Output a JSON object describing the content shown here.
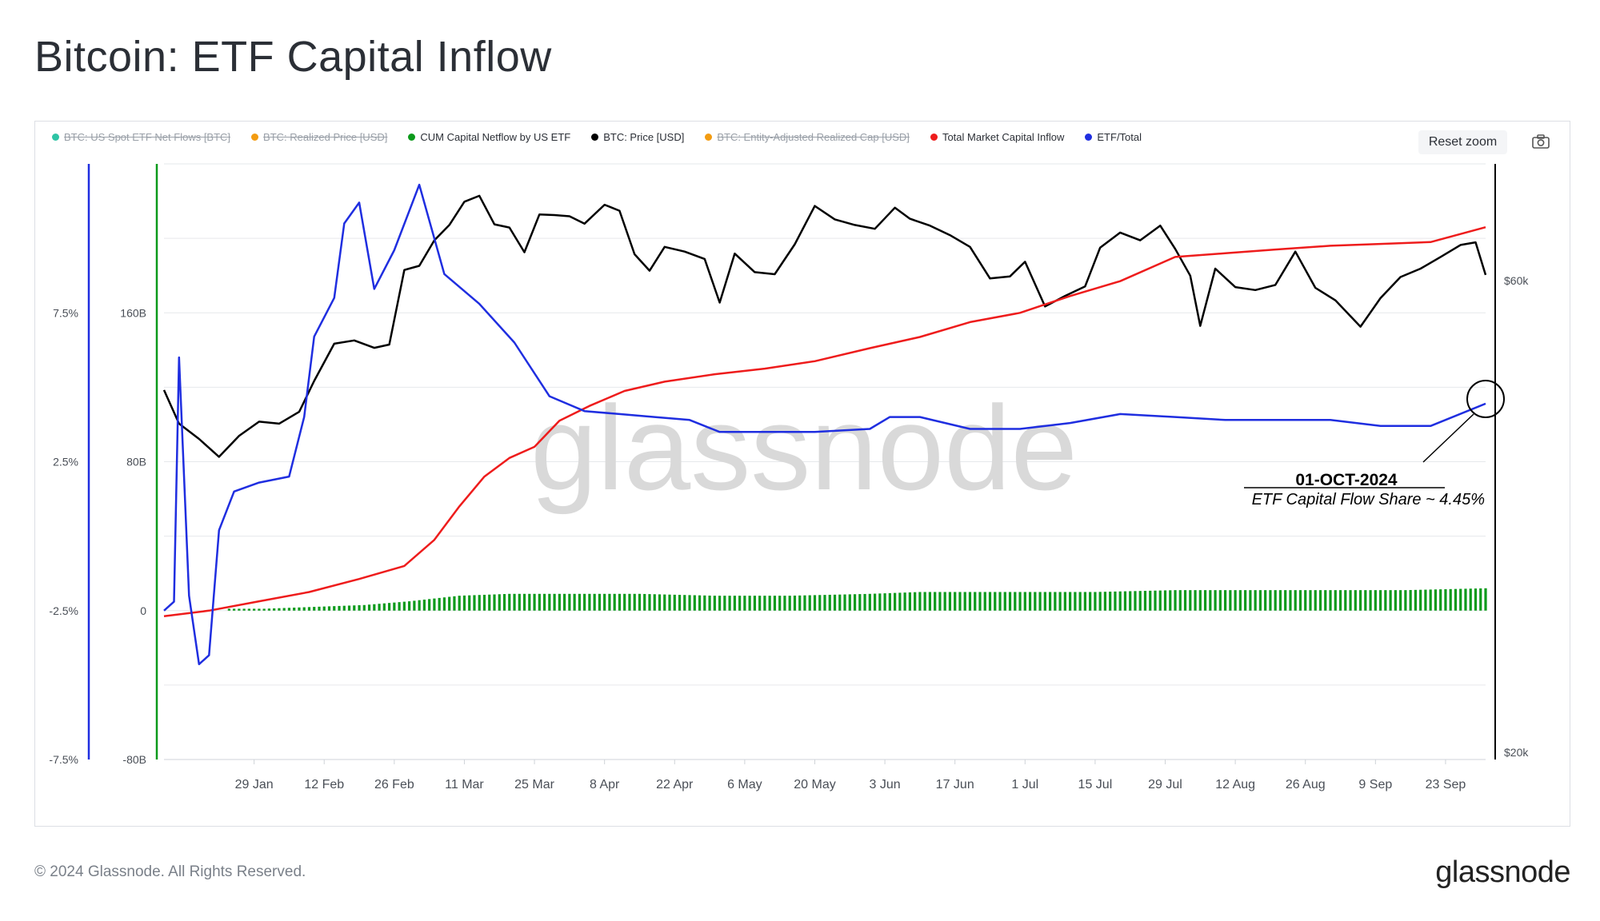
{
  "page": {
    "title": "Bitcoin: ETF Capital Inflow",
    "copyright": "© 2024 Glassnode. All Rights Reserved.",
    "logo": "glassnode",
    "watermark": "glassnode",
    "reset_zoom": "Reset zoom"
  },
  "annotation": {
    "date": "01-OCT-2024",
    "text": "ETF Capital Flow Share ~ 4.45%"
  },
  "chart_data": {
    "type": "line",
    "legend": [
      {
        "name": "BTC: US Spot ETF Net Flows [BTC]",
        "color": "#2ec4a5",
        "hidden": true
      },
      {
        "name": "BTC: Realized Price [USD]",
        "color": "#f39c12",
        "hidden": true
      },
      {
        "name": "CUM Capital Netflow by US ETF",
        "color": "#0b9a1b",
        "hidden": false
      },
      {
        "name": "BTC: Price [USD]",
        "color": "#000000",
        "hidden": false
      },
      {
        "name": "BTC: Entity-Adjusted Realized Cap [USD]",
        "color": "#f39c12",
        "hidden": true
      },
      {
        "name": "Total Market Capital Inflow",
        "color": "#ee1c1c",
        "hidden": false
      },
      {
        "name": "ETF/Total",
        "color": "#1f2ee0",
        "hidden": false
      }
    ],
    "x_ticks": [
      "29 Jan",
      "12 Feb",
      "26 Feb",
      "11 Mar",
      "25 Mar",
      "8 Apr",
      "22 Apr",
      "6 May",
      "20 May",
      "3 Jun",
      "17 Jun",
      "1 Jul",
      "15 Jul",
      "29 Jul",
      "12 Aug",
      "26 Aug",
      "9 Sep",
      "23 Sep"
    ],
    "x_range": [
      "2024-01-11",
      "2024-10-01"
    ],
    "y_axes": {
      "percent": {
        "ticks": [
          "7.5%",
          "2.5%",
          "-2.5%",
          "-7.5%"
        ],
        "color": "#1f2ee0",
        "range": [
          -7.5,
          12.5
        ]
      },
      "capital": {
        "ticks": [
          "160B",
          "80B",
          "0",
          "-80B"
        ],
        "color": "#0b9a1b",
        "range": [
          -80,
          240
        ]
      },
      "price": {
        "ticks": [
          "$60k",
          "$20k"
        ],
        "color": "#000000",
        "scale": "log"
      }
    },
    "grid": true,
    "series": [
      {
        "name": "BTC: Price [USD]",
        "axis": "price",
        "points": [
          [
            "2024-01-11",
            46500
          ],
          [
            "2024-01-14",
            43000
          ],
          [
            "2024-01-18",
            41500
          ],
          [
            "2024-01-22",
            39800
          ],
          [
            "2024-01-26",
            41800
          ],
          [
            "2024-01-30",
            43200
          ],
          [
            "2024-02-03",
            43000
          ],
          [
            "2024-02-07",
            44200
          ],
          [
            "2024-02-10",
            47500
          ],
          [
            "2024-02-14",
            51800
          ],
          [
            "2024-02-18",
            52200
          ],
          [
            "2024-02-22",
            51300
          ],
          [
            "2024-02-25",
            51700
          ],
          [
            "2024-02-28",
            61500
          ],
          [
            "2024-03-02",
            62100
          ],
          [
            "2024-03-05",
            65900
          ],
          [
            "2024-03-08",
            68300
          ],
          [
            "2024-03-11",
            72100
          ],
          [
            "2024-03-14",
            73100
          ],
          [
            "2024-03-17",
            68400
          ],
          [
            "2024-03-20",
            67900
          ],
          [
            "2024-03-23",
            64100
          ],
          [
            "2024-03-26",
            70000
          ],
          [
            "2024-03-29",
            69900
          ],
          [
            "2024-04-01",
            69700
          ],
          [
            "2024-04-04",
            68500
          ],
          [
            "2024-04-08",
            71600
          ],
          [
            "2024-04-11",
            70600
          ],
          [
            "2024-04-14",
            63800
          ],
          [
            "2024-04-17",
            61400
          ],
          [
            "2024-04-20",
            64900
          ],
          [
            "2024-04-24",
            64200
          ],
          [
            "2024-04-28",
            63100
          ],
          [
            "2024-05-01",
            57000
          ],
          [
            "2024-05-04",
            63900
          ],
          [
            "2024-05-08",
            61200
          ],
          [
            "2024-05-12",
            60900
          ],
          [
            "2024-05-16",
            65300
          ],
          [
            "2024-05-20",
            71400
          ],
          [
            "2024-05-24",
            69200
          ],
          [
            "2024-05-28",
            68300
          ],
          [
            "2024-06-01",
            67700
          ],
          [
            "2024-06-05",
            71100
          ],
          [
            "2024-06-08",
            69300
          ],
          [
            "2024-06-12",
            68200
          ],
          [
            "2024-06-16",
            66700
          ],
          [
            "2024-06-20",
            64900
          ],
          [
            "2024-06-24",
            60300
          ],
          [
            "2024-06-28",
            60600
          ],
          [
            "2024-07-01",
            62700
          ],
          [
            "2024-07-05",
            56500
          ],
          [
            "2024-07-09",
            57900
          ],
          [
            "2024-07-13",
            59200
          ],
          [
            "2024-07-16",
            64800
          ],
          [
            "2024-07-20",
            67100
          ],
          [
            "2024-07-24",
            65900
          ],
          [
            "2024-07-28",
            68200
          ],
          [
            "2024-07-31",
            64600
          ],
          [
            "2024-08-03",
            60700
          ],
          [
            "2024-08-05",
            54000
          ],
          [
            "2024-08-08",
            61700
          ],
          [
            "2024-08-12",
            59100
          ],
          [
            "2024-08-16",
            58700
          ],
          [
            "2024-08-20",
            59400
          ],
          [
            "2024-08-24",
            64200
          ],
          [
            "2024-08-28",
            59000
          ],
          [
            "2024-09-01",
            57300
          ],
          [
            "2024-09-06",
            53900
          ],
          [
            "2024-09-10",
            57600
          ],
          [
            "2024-09-14",
            60500
          ],
          [
            "2024-09-18",
            61700
          ],
          [
            "2024-09-22",
            63400
          ],
          [
            "2024-09-26",
            65200
          ],
          [
            "2024-09-29",
            65600
          ],
          [
            "2024-10-01",
            60800
          ]
        ]
      },
      {
        "name": "Total Market Capital Inflow",
        "axis": "capital",
        "points": [
          [
            "2024-01-11",
            -3
          ],
          [
            "2024-01-20",
            0
          ],
          [
            "2024-01-30",
            5
          ],
          [
            "2024-02-09",
            10
          ],
          [
            "2024-02-19",
            17
          ],
          [
            "2024-02-28",
            24
          ],
          [
            "2024-03-05",
            38
          ],
          [
            "2024-03-10",
            56
          ],
          [
            "2024-03-15",
            72
          ],
          [
            "2024-03-20",
            82
          ],
          [
            "2024-03-25",
            88
          ],
          [
            "2024-03-30",
            102
          ],
          [
            "2024-04-05",
            110
          ],
          [
            "2024-04-12",
            118
          ],
          [
            "2024-04-20",
            123
          ],
          [
            "2024-04-30",
            127
          ],
          [
            "2024-05-10",
            130
          ],
          [
            "2024-05-20",
            134
          ],
          [
            "2024-05-31",
            141
          ],
          [
            "2024-06-10",
            147
          ],
          [
            "2024-06-20",
            155
          ],
          [
            "2024-06-30",
            160
          ],
          [
            "2024-07-10",
            169
          ],
          [
            "2024-07-20",
            177
          ],
          [
            "2024-07-31",
            190
          ],
          [
            "2024-08-10",
            192
          ],
          [
            "2024-08-20",
            194
          ],
          [
            "2024-08-31",
            196
          ],
          [
            "2024-09-10",
            197
          ],
          [
            "2024-09-20",
            198
          ],
          [
            "2024-10-01",
            206
          ]
        ]
      },
      {
        "name": "ETF/Total",
        "axis": "percent",
        "points": [
          [
            "2024-01-11",
            -2.5
          ],
          [
            "2024-01-13",
            -2.2
          ],
          [
            "2024-01-14",
            6.0
          ],
          [
            "2024-01-16",
            -2.0
          ],
          [
            "2024-01-18",
            -4.3
          ],
          [
            "2024-01-20",
            -4.0
          ],
          [
            "2024-01-22",
            0.2
          ],
          [
            "2024-01-25",
            1.5
          ],
          [
            "2024-01-30",
            1.8
          ],
          [
            "2024-02-05",
            2.0
          ],
          [
            "2024-02-08",
            4.0
          ],
          [
            "2024-02-10",
            6.7
          ],
          [
            "2024-02-14",
            8.0
          ],
          [
            "2024-02-16",
            10.5
          ],
          [
            "2024-02-19",
            11.2
          ],
          [
            "2024-02-22",
            8.3
          ],
          [
            "2024-02-26",
            9.6
          ],
          [
            "2024-03-02",
            11.8
          ],
          [
            "2024-03-07",
            8.8
          ],
          [
            "2024-03-14",
            7.8
          ],
          [
            "2024-03-21",
            6.5
          ],
          [
            "2024-03-28",
            4.7
          ],
          [
            "2024-04-04",
            4.2
          ],
          [
            "2024-04-11",
            4.1
          ],
          [
            "2024-04-18",
            4.0
          ],
          [
            "2024-04-25",
            3.9
          ],
          [
            "2024-05-01",
            3.5
          ],
          [
            "2024-05-10",
            3.5
          ],
          [
            "2024-05-20",
            3.5
          ],
          [
            "2024-05-31",
            3.6
          ],
          [
            "2024-06-04",
            4.0
          ],
          [
            "2024-06-10",
            4.0
          ],
          [
            "2024-06-20",
            3.6
          ],
          [
            "2024-06-30",
            3.6
          ],
          [
            "2024-07-10",
            3.8
          ],
          [
            "2024-07-20",
            4.1
          ],
          [
            "2024-07-31",
            4.0
          ],
          [
            "2024-08-10",
            3.9
          ],
          [
            "2024-08-20",
            3.9
          ],
          [
            "2024-08-31",
            3.9
          ],
          [
            "2024-09-10",
            3.7
          ],
          [
            "2024-09-20",
            3.7
          ],
          [
            "2024-10-01",
            4.45
          ]
        ]
      },
      {
        "name": "CUM Capital Netflow by US ETF",
        "axis": "capital",
        "type": "bar",
        "points": [
          [
            "2024-01-11",
            0
          ],
          [
            "2024-01-15",
            0.5
          ],
          [
            "2024-01-20",
            1
          ],
          [
            "2024-01-31",
            1
          ],
          [
            "2024-02-10",
            2
          ],
          [
            "2024-02-20",
            3
          ],
          [
            "2024-02-29",
            5
          ],
          [
            "2024-03-10",
            8
          ],
          [
            "2024-03-20",
            9
          ],
          [
            "2024-03-31",
            9
          ],
          [
            "2024-04-15",
            9
          ],
          [
            "2024-04-30",
            8
          ],
          [
            "2024-05-15",
            8
          ],
          [
            "2024-05-31",
            9
          ],
          [
            "2024-06-10",
            10
          ],
          [
            "2024-06-20",
            10
          ],
          [
            "2024-06-30",
            10
          ],
          [
            "2024-07-15",
            10
          ],
          [
            "2024-07-31",
            11
          ],
          [
            "2024-08-15",
            11
          ],
          [
            "2024-08-31",
            11
          ],
          [
            "2024-09-15",
            11
          ],
          [
            "2024-10-01",
            12
          ]
        ]
      }
    ]
  }
}
